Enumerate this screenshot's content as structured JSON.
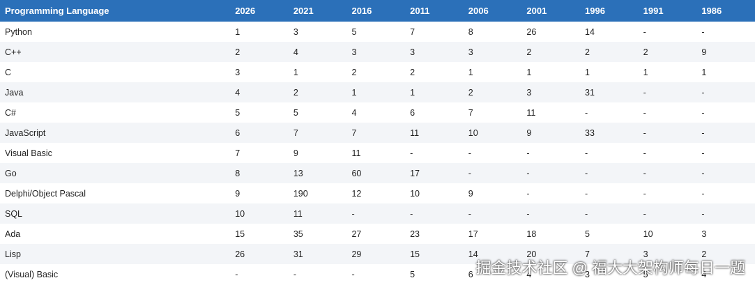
{
  "table": {
    "header": [
      "Programming Language",
      "2026",
      "2021",
      "2016",
      "2011",
      "2006",
      "2001",
      "1996",
      "1991",
      "1986"
    ],
    "rows": [
      [
        "Python",
        "1",
        "3",
        "5",
        "7",
        "8",
        "26",
        "14",
        "-",
        "-"
      ],
      [
        "C++",
        "2",
        "4",
        "3",
        "3",
        "3",
        "2",
        "2",
        "2",
        "9"
      ],
      [
        "C",
        "3",
        "1",
        "2",
        "2",
        "1",
        "1",
        "1",
        "1",
        "1"
      ],
      [
        "Java",
        "4",
        "2",
        "1",
        "1",
        "2",
        "3",
        "31",
        "-",
        "-"
      ],
      [
        "C#",
        "5",
        "5",
        "4",
        "6",
        "7",
        "11",
        "-",
        "-",
        "-"
      ],
      [
        "JavaScript",
        "6",
        "7",
        "7",
        "11",
        "10",
        "9",
        "33",
        "-",
        "-"
      ],
      [
        "Visual Basic",
        "7",
        "9",
        "11",
        "-",
        "-",
        "-",
        "-",
        "-",
        "-"
      ],
      [
        "Go",
        "8",
        "13",
        "60",
        "17",
        "-",
        "-",
        "-",
        "-",
        "-"
      ],
      [
        "Delphi/Object Pascal",
        "9",
        "190",
        "12",
        "10",
        "9",
        "-",
        "-",
        "-",
        "-"
      ],
      [
        "SQL",
        "10",
        "11",
        "-",
        "-",
        "-",
        "-",
        "-",
        "-",
        "-"
      ],
      [
        "Ada",
        "15",
        "35",
        "27",
        "23",
        "17",
        "18",
        "5",
        "10",
        "3"
      ],
      [
        "Lisp",
        "26",
        "31",
        "29",
        "15",
        "14",
        "20",
        "7",
        "3",
        "2"
      ],
      [
        "(Visual) Basic",
        "-",
        "-",
        "-",
        "5",
        "6",
        "4",
        "3",
        "5",
        "4"
      ]
    ]
  },
  "watermark": "掘金技术社区 @ 福大大架构师每日一题"
}
